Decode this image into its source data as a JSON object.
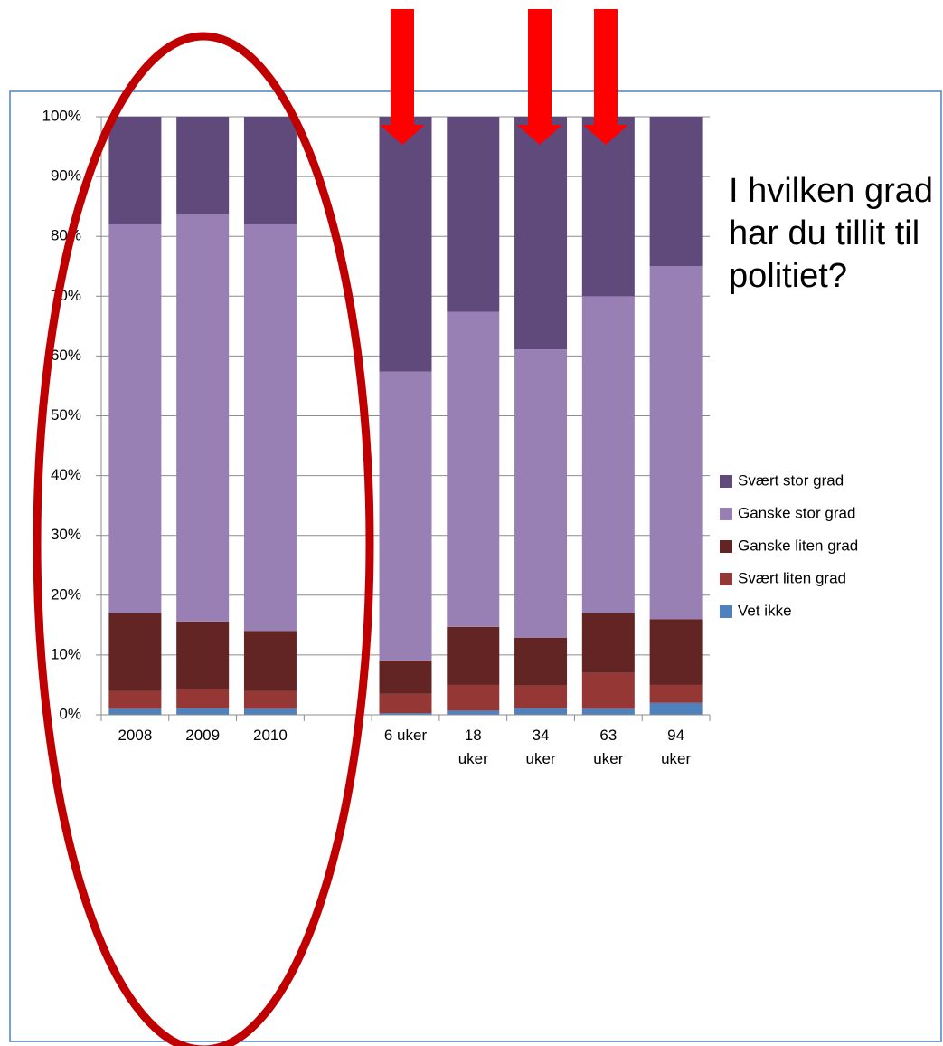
{
  "chart_data": {
    "type": "stacked_bar",
    "title": "I hvilken grad har du tillit til politiet?",
    "categories": [
      "2008",
      "2009",
      "2010",
      null,
      "6 uker",
      "18 uker",
      "34 uker",
      "63 uker",
      "94 uker"
    ],
    "series": [
      {
        "name": "Vet ikke",
        "color": "#4f81bd",
        "values": [
          1,
          1.1,
          1,
          null,
          0.3,
          0.7,
          1.1,
          1,
          2
        ]
      },
      {
        "name": "Svært liten grad",
        "color": "#953735",
        "values": [
          3,
          3.2,
          3,
          null,
          3.2,
          4.3,
          3.8,
          6,
          3
        ]
      },
      {
        "name": "Ganske liten grad",
        "color": "#632523",
        "values": [
          13,
          11.3,
          10,
          null,
          5.6,
          9.7,
          8,
          10,
          11
        ]
      },
      {
        "name": "Ganske stor grad",
        "color": "#9880b5",
        "values": [
          65,
          68.1,
          68,
          null,
          48.3,
          52.7,
          48.2,
          53,
          59
        ]
      },
      {
        "name": "Svært stor grad",
        "color": "#604a7b",
        "values": [
          18,
          16.3,
          18,
          null,
          42.6,
          32.6,
          38.9,
          30,
          25
        ]
      }
    ],
    "ylim": [
      0,
      100
    ],
    "yticks": [
      {
        "value": 0,
        "label": "0%"
      },
      {
        "value": 10,
        "label": "10%"
      },
      {
        "value": 20,
        "label": "20%"
      },
      {
        "value": 30,
        "label": "30%"
      },
      {
        "value": 40,
        "label": "40%"
      },
      {
        "value": 50,
        "label": "50%"
      },
      {
        "value": 60,
        "label": "60%"
      },
      {
        "value": 70,
        "label": "70%"
      },
      {
        "value": 80,
        "label": "80%"
      },
      {
        "value": 90,
        "label": "90%"
      },
      {
        "value": 100,
        "label": "100%"
      }
    ],
    "grid": true,
    "legend": "right"
  }
}
